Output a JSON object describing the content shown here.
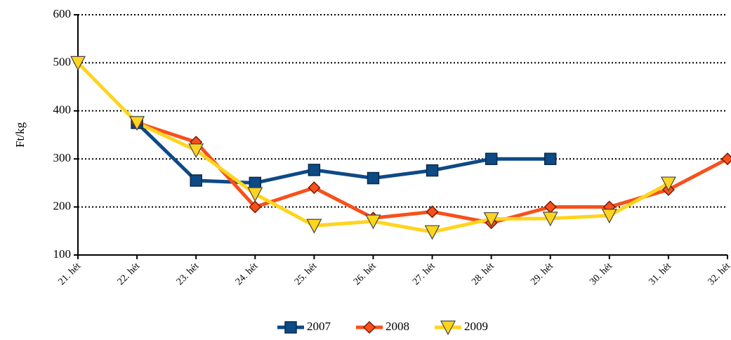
{
  "chart_data": {
    "type": "line",
    "y_label": "Ft/kg",
    "categories": [
      "21. hét",
      "22. hét",
      "23. hét",
      "24. hét",
      "25. hét",
      "26. hét",
      "27. hét",
      "28. hét",
      "29. hét",
      "30. hét",
      "31. hét",
      "32. hét"
    ],
    "series": [
      {
        "name": "2007",
        "color": "#0d4a86",
        "marker": "square",
        "values": [
          null,
          375,
          255,
          250,
          277,
          260,
          276,
          300,
          300,
          null,
          null,
          null
        ]
      },
      {
        "name": "2008",
        "color": "#f8501c",
        "marker": "diamond",
        "values": [
          null,
          375,
          335,
          200,
          240,
          177,
          190,
          167,
          200,
          200,
          236,
          300
        ]
      },
      {
        "name": "2009",
        "color": "#ffd41e",
        "marker": "triangle-down",
        "values": [
          500,
          375,
          318,
          227,
          161,
          170,
          148,
          175,
          176,
          182,
          249,
          null
        ]
      }
    ],
    "ylim": [
      100,
      600
    ],
    "yticks": [
      100,
      200,
      300,
      400,
      500,
      600
    ],
    "grid": true,
    "legend": "bottom"
  }
}
